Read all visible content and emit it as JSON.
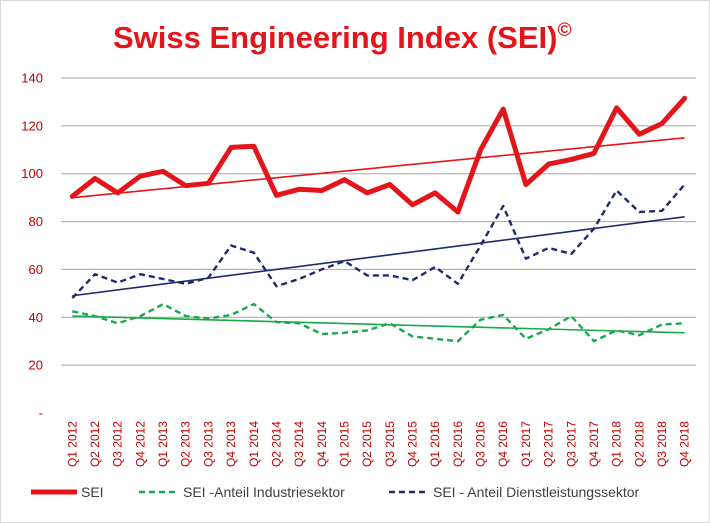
{
  "chart_data": {
    "type": "line",
    "title": "Swiss Engineering Index (SEI)",
    "title_mark": "©",
    "ylim": [
      0,
      140
    ],
    "yticks": [
      {
        "value": 0,
        "label": "-"
      },
      {
        "value": 20,
        "label": "20"
      },
      {
        "value": 40,
        "label": "40"
      },
      {
        "value": 60,
        "label": "60"
      },
      {
        "value": 80,
        "label": "80"
      },
      {
        "value": 100,
        "label": "100"
      },
      {
        "value": 120,
        "label": "120"
      },
      {
        "value": 140,
        "label": "140"
      }
    ],
    "grid": true,
    "legend_position": "bottom",
    "categories": [
      "Q1 2012",
      "Q2 2012",
      "Q3 2012",
      "Q4 2012",
      "Q1 2013",
      "Q2 2013",
      "Q3 2013",
      "Q4 2013",
      "Q1 2014",
      "Q2 2014",
      "Q3 2014",
      "Q4 2014",
      "Q1 2015",
      "Q2 2015",
      "Q3 2015",
      "Q4 2015",
      "Q1 2016",
      "Q2 2016",
      "Q3 2016",
      "Q4 2016",
      "Q1 2017",
      "Q2 2017",
      "Q3 2017",
      "Q4 2017",
      "Q1 2018",
      "Q2 2018",
      "Q3 2018",
      "Q4 2018"
    ],
    "series": [
      {
        "name": "SEI",
        "color": "#e3151a",
        "style": "solid-thick",
        "values": [
          90.5,
          98,
          92,
          99,
          101,
          95,
          96,
          111,
          111.5,
          91,
          93.5,
          93,
          97.5,
          92,
          95.5,
          87,
          92,
          84,
          110,
          127,
          95.5,
          104,
          106,
          108.5,
          127.5,
          116.5,
          121,
          131.5
        ]
      },
      {
        "name": "SEI -Anteil Industriesektor",
        "color": "#1aa84a",
        "style": "dashed",
        "values": [
          42.5,
          40.5,
          37.5,
          40.5,
          45.5,
          40.5,
          39.5,
          41,
          45.5,
          38,
          37.5,
          33,
          33.5,
          34.5,
          37.5,
          32,
          31,
          30,
          39,
          41,
          31,
          35,
          40.5,
          30,
          34.5,
          32.5,
          37,
          37.5
        ]
      },
      {
        "name": "SEI - Anteil Dienstleistungssektor",
        "color": "#1f2a6b",
        "style": "dashed",
        "values": [
          48,
          58,
          54.5,
          58,
          56,
          54,
          56.5,
          70,
          67,
          53,
          56,
          60,
          63.5,
          57.5,
          57.5,
          55.5,
          61,
          54,
          70,
          86.5,
          64.5,
          69,
          66.5,
          77,
          93,
          84,
          84.5,
          95.5
        ]
      }
    ],
    "trendlines": [
      {
        "series": "SEI",
        "color": "#e3151a",
        "start": 90,
        "end": 115
      },
      {
        "series": "SEI -Anteil Industriesektor",
        "color": "#1aa84a",
        "start": 40.5,
        "end": 33.5
      },
      {
        "series": "SEI - Anteil Dienstleistungssektor",
        "color": "#1f2a6b",
        "start": 49,
        "end": 82
      }
    ]
  }
}
